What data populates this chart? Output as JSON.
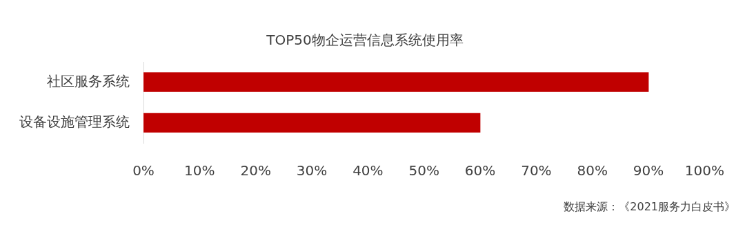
{
  "chart_data": {
    "type": "bar",
    "orientation": "horizontal",
    "title": "TOP50物企运营信息系统使用率",
    "categories": [
      "社区服务系统",
      "设备设施管理系统"
    ],
    "values": [
      90,
      60
    ],
    "color": "#c00000",
    "xlim": [
      0,
      100
    ],
    "xticks": [
      {
        "value": 0,
        "label": "0%"
      },
      {
        "value": 10,
        "label": "10%"
      },
      {
        "value": 20,
        "label": "20%"
      },
      {
        "value": 30,
        "label": "30%"
      },
      {
        "value": 40,
        "label": "40%"
      },
      {
        "value": 50,
        "label": "50%"
      },
      {
        "value": 60,
        "label": "60%"
      },
      {
        "value": 70,
        "label": "70%"
      },
      {
        "value": 80,
        "label": "80%"
      },
      {
        "value": 90,
        "label": "90%"
      },
      {
        "value": 100,
        "label": "100%"
      }
    ],
    "grid": false,
    "legend": false,
    "annotations": [
      "数据来源：《2021服务力白皮书》"
    ]
  }
}
